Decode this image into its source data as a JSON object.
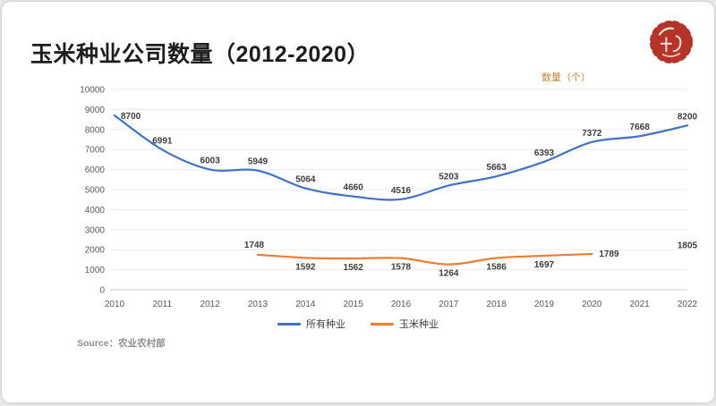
{
  "slide": {
    "title": "玉米种业公司数量（2012-2020）",
    "source": "Source：农业农村部"
  },
  "logo": {
    "color": "#b5342a"
  },
  "chart_data": {
    "type": "line",
    "title": "玉米种业公司数量（2012-2020）",
    "unit_label": "数量（个）",
    "unit_label_color": "#bf8a3e",
    "ylim": [
      0,
      10000
    ],
    "ytick_step": 1000,
    "grid": true,
    "legend_position": "bottom",
    "categories": [
      "2010",
      "2011",
      "2012",
      "2013",
      "2014",
      "2015",
      "2016",
      "2017",
      "2018",
      "2019",
      "2020",
      "2021",
      "2022"
    ],
    "series": [
      {
        "name": "所有种业",
        "color": "#4472c4",
        "values": [
          8700,
          6991,
          6003,
          5949,
          5064,
          4660,
          4516,
          5203,
          5663,
          6393,
          7372,
          7668,
          8200
        ]
      },
      {
        "name": "玉米种业",
        "color": "#ed7d31",
        "values": [
          null,
          null,
          null,
          1748,
          1592,
          1562,
          1578,
          1264,
          1586,
          1697,
          1789,
          null,
          1805
        ]
      }
    ]
  }
}
